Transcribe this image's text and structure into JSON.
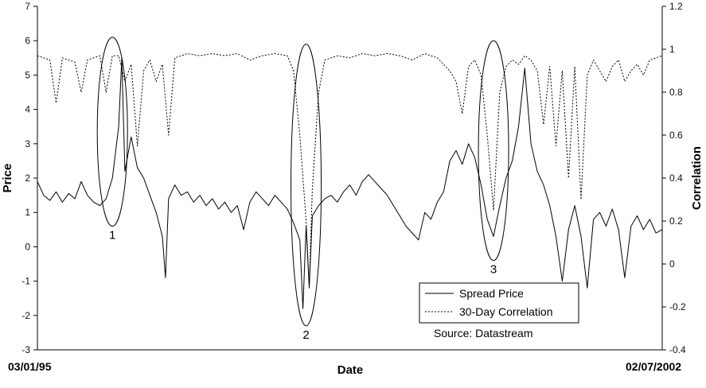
{
  "chart_data": {
    "type": "line",
    "title": "",
    "xlabel": "Date",
    "ylabel_left": "Price",
    "ylabel_right": "Correlation",
    "x_start_label": "03/01/95",
    "x_end_label": "02/07/2002",
    "ylim_left": [
      -3,
      7
    ],
    "ylim_right": [
      -0.4,
      1.2
    ],
    "left_ticks": [
      "7",
      "6",
      "5",
      "4",
      "3",
      "2",
      "1",
      "0",
      "-1",
      "-2",
      "-3"
    ],
    "right_ticks": [
      "1.2",
      "1",
      "0.8",
      "0.6",
      "0.4",
      "0.2",
      "0",
      "-0.2",
      "-0.4"
    ],
    "grid": false,
    "legend": {
      "placement": "bottom-right",
      "entries": [
        "Spread Price",
        "30-Day Correlation"
      ]
    },
    "source_note": "Source: Datastream",
    "annotations": [
      {
        "label": "1",
        "x_frac": 0.12,
        "price_range": [
          0.6,
          6.1
        ]
      },
      {
        "label": "2",
        "x_frac": 0.43,
        "price_range": [
          -2.3,
          5.9
        ]
      },
      {
        "label": "3",
        "x_frac": 0.73,
        "price_range": [
          -0.4,
          6.0
        ]
      }
    ],
    "series": [
      {
        "name": "Spread Price",
        "axis": "left",
        "style": "solid",
        "points": [
          [
            0.0,
            1.9
          ],
          [
            0.01,
            1.5
          ],
          [
            0.02,
            1.35
          ],
          [
            0.03,
            1.6
          ],
          [
            0.04,
            1.3
          ],
          [
            0.05,
            1.55
          ],
          [
            0.06,
            1.4
          ],
          [
            0.07,
            1.9
          ],
          [
            0.08,
            1.5
          ],
          [
            0.09,
            1.3
          ],
          [
            0.1,
            1.2
          ],
          [
            0.11,
            1.4
          ],
          [
            0.12,
            2.0
          ],
          [
            0.13,
            3.5
          ],
          [
            0.135,
            5.5
          ],
          [
            0.14,
            2.2
          ],
          [
            0.15,
            3.2
          ],
          [
            0.16,
            2.3
          ],
          [
            0.17,
            2.0
          ],
          [
            0.18,
            1.5
          ],
          [
            0.19,
            1.0
          ],
          [
            0.2,
            0.3
          ],
          [
            0.205,
            -0.9
          ],
          [
            0.21,
            1.4
          ],
          [
            0.22,
            1.8
          ],
          [
            0.23,
            1.5
          ],
          [
            0.24,
            1.6
          ],
          [
            0.25,
            1.3
          ],
          [
            0.26,
            1.5
          ],
          [
            0.27,
            1.2
          ],
          [
            0.28,
            1.4
          ],
          [
            0.29,
            1.1
          ],
          [
            0.3,
            1.3
          ],
          [
            0.31,
            1.0
          ],
          [
            0.32,
            1.2
          ],
          [
            0.33,
            0.5
          ],
          [
            0.34,
            1.3
          ],
          [
            0.35,
            1.6
          ],
          [
            0.36,
            1.4
          ],
          [
            0.37,
            1.2
          ],
          [
            0.38,
            1.5
          ],
          [
            0.39,
            1.3
          ],
          [
            0.4,
            1.1
          ],
          [
            0.41,
            0.7
          ],
          [
            0.42,
            0.2
          ],
          [
            0.425,
            -1.8
          ],
          [
            0.43,
            0.6
          ],
          [
            0.435,
            -1.2
          ],
          [
            0.44,
            0.9
          ],
          [
            0.45,
            1.2
          ],
          [
            0.46,
            1.4
          ],
          [
            0.47,
            1.5
          ],
          [
            0.48,
            1.3
          ],
          [
            0.49,
            1.6
          ],
          [
            0.5,
            1.8
          ],
          [
            0.51,
            1.5
          ],
          [
            0.52,
            1.9
          ],
          [
            0.53,
            2.1
          ],
          [
            0.54,
            1.9
          ],
          [
            0.55,
            1.7
          ],
          [
            0.56,
            1.5
          ],
          [
            0.57,
            1.2
          ],
          [
            0.58,
            0.9
          ],
          [
            0.59,
            0.6
          ],
          [
            0.6,
            0.4
          ],
          [
            0.61,
            0.2
          ],
          [
            0.62,
            1.0
          ],
          [
            0.63,
            0.8
          ],
          [
            0.64,
            1.3
          ],
          [
            0.65,
            1.6
          ],
          [
            0.66,
            2.5
          ],
          [
            0.67,
            2.8
          ],
          [
            0.68,
            2.4
          ],
          [
            0.69,
            3.0
          ],
          [
            0.7,
            2.6
          ],
          [
            0.71,
            1.8
          ],
          [
            0.72,
            0.8
          ],
          [
            0.73,
            0.3
          ],
          [
            0.74,
            1.2
          ],
          [
            0.75,
            2.0
          ],
          [
            0.76,
            2.5
          ],
          [
            0.77,
            3.5
          ],
          [
            0.78,
            5.2
          ],
          [
            0.79,
            3.0
          ],
          [
            0.8,
            2.2
          ],
          [
            0.81,
            1.8
          ],
          [
            0.82,
            1.2
          ],
          [
            0.83,
            0.3
          ],
          [
            0.84,
            -1.0
          ],
          [
            0.85,
            0.5
          ],
          [
            0.86,
            1.2
          ],
          [
            0.87,
            0.3
          ],
          [
            0.88,
            -1.2
          ],
          [
            0.89,
            0.8
          ],
          [
            0.9,
            1.0
          ],
          [
            0.91,
            0.6
          ],
          [
            0.92,
            1.1
          ],
          [
            0.93,
            0.5
          ],
          [
            0.94,
            -0.9
          ],
          [
            0.95,
            0.6
          ],
          [
            0.96,
            0.9
          ],
          [
            0.97,
            0.5
          ],
          [
            0.98,
            0.8
          ],
          [
            0.99,
            0.4
          ],
          [
            1.0,
            0.5
          ]
        ]
      },
      {
        "name": "30-Day Correlation",
        "axis": "right",
        "style": "dashed",
        "points": [
          [
            0.0,
            0.97
          ],
          [
            0.02,
            0.95
          ],
          [
            0.03,
            0.75
          ],
          [
            0.04,
            0.96
          ],
          [
            0.06,
            0.94
          ],
          [
            0.07,
            0.8
          ],
          [
            0.08,
            0.95
          ],
          [
            0.1,
            0.97
          ],
          [
            0.11,
            0.8
          ],
          [
            0.12,
            0.97
          ],
          [
            0.13,
            0.97
          ],
          [
            0.14,
            0.85
          ],
          [
            0.15,
            0.93
          ],
          [
            0.16,
            0.55
          ],
          [
            0.17,
            0.9
          ],
          [
            0.18,
            0.95
          ],
          [
            0.19,
            0.85
          ],
          [
            0.2,
            0.93
          ],
          [
            0.21,
            0.6
          ],
          [
            0.22,
            0.96
          ],
          [
            0.24,
            0.98
          ],
          [
            0.26,
            0.97
          ],
          [
            0.28,
            0.98
          ],
          [
            0.3,
            0.97
          ],
          [
            0.32,
            0.98
          ],
          [
            0.34,
            0.95
          ],
          [
            0.36,
            0.97
          ],
          [
            0.38,
            0.98
          ],
          [
            0.4,
            0.97
          ],
          [
            0.41,
            0.9
          ],
          [
            0.42,
            0.6
          ],
          [
            0.43,
            0.2
          ],
          [
            0.435,
            -0.1
          ],
          [
            0.44,
            0.35
          ],
          [
            0.45,
            0.8
          ],
          [
            0.46,
            0.95
          ],
          [
            0.48,
            0.97
          ],
          [
            0.5,
            0.96
          ],
          [
            0.52,
            0.98
          ],
          [
            0.54,
            0.97
          ],
          [
            0.56,
            0.98
          ],
          [
            0.58,
            0.97
          ],
          [
            0.6,
            0.95
          ],
          [
            0.62,
            0.98
          ],
          [
            0.64,
            0.96
          ],
          [
            0.66,
            0.9
          ],
          [
            0.67,
            0.85
          ],
          [
            0.68,
            0.7
          ],
          [
            0.69,
            0.92
          ],
          [
            0.7,
            0.95
          ],
          [
            0.71,
            0.88
          ],
          [
            0.72,
            0.6
          ],
          [
            0.73,
            0.25
          ],
          [
            0.74,
            0.8
          ],
          [
            0.75,
            0.92
          ],
          [
            0.76,
            0.95
          ],
          [
            0.77,
            0.93
          ],
          [
            0.78,
            0.97
          ],
          [
            0.79,
            0.95
          ],
          [
            0.8,
            0.9
          ],
          [
            0.81,
            0.65
          ],
          [
            0.82,
            0.92
          ],
          [
            0.83,
            0.55
          ],
          [
            0.84,
            0.9
          ],
          [
            0.85,
            0.4
          ],
          [
            0.86,
            0.92
          ],
          [
            0.87,
            0.3
          ],
          [
            0.88,
            0.88
          ],
          [
            0.89,
            0.95
          ],
          [
            0.9,
            0.9
          ],
          [
            0.91,
            0.85
          ],
          [
            0.92,
            0.92
          ],
          [
            0.93,
            0.95
          ],
          [
            0.94,
            0.85
          ],
          [
            0.95,
            0.9
          ],
          [
            0.96,
            0.93
          ],
          [
            0.97,
            0.88
          ],
          [
            0.98,
            0.95
          ],
          [
            1.0,
            0.97
          ]
        ]
      }
    ]
  }
}
